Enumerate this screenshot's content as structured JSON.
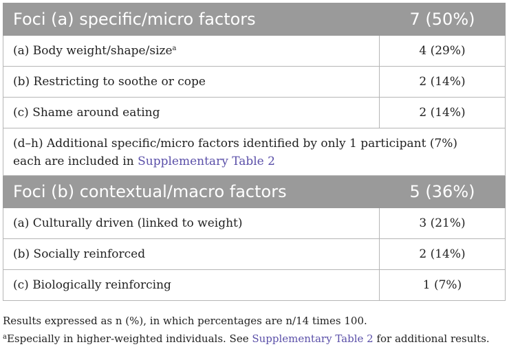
{
  "table": {
    "sections": [
      {
        "heading": "Foci (a) specific/micro factors",
        "count": "7 (50%)",
        "rows": [
          {
            "label": "(a) Body weight/shape/size",
            "sup": "a",
            "value": "4 (29%)"
          },
          {
            "label": "(b) Restricting to soothe or cope",
            "value": "2 (14%)"
          },
          {
            "label": "(c) Shame around eating",
            "value": "2 (14%)"
          }
        ],
        "note": {
          "line1": "(d–h) Additional specific/micro factors identified by only 1 participant (7%)",
          "line2_prefix": "each are included in ",
          "line2_link": "Supplementary Table 2"
        }
      },
      {
        "heading": "Foci (b) contextual/macro factors",
        "count": "5 (36%)",
        "rows": [
          {
            "label": "(a) Culturally driven (linked to weight)",
            "value": "3 (21%)"
          },
          {
            "label": "(b) Socially reinforced",
            "value": "2 (14%)"
          },
          {
            "label": "(c) Biologically reinforcing",
            "value": "1 (7%)"
          }
        ]
      }
    ]
  },
  "footnotes": {
    "line1": "Results expressed as n (%), in which percentages are n/14 times 100.",
    "line2_sup": "a",
    "line2_prefix": "Especially in higher-weighted individuals. See ",
    "line2_link": "Supplementary Table 2",
    "line2_suffix": " for additional results."
  },
  "colors": {
    "header_bg": "#9a9a9a",
    "link": "#5a4fa8",
    "border": "#b5b5b5"
  }
}
